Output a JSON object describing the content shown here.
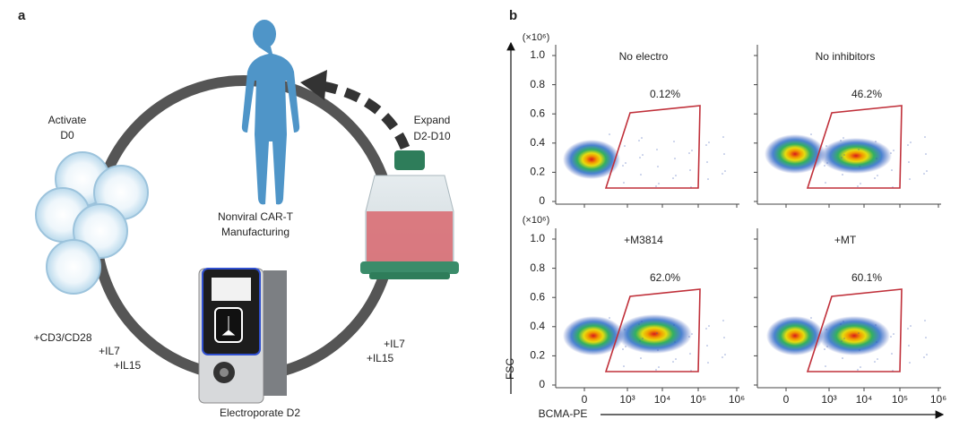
{
  "panel_a": {
    "label": "a",
    "activate": [
      "Activate",
      "D0"
    ],
    "expand": [
      "Expand",
      "D2-D10"
    ],
    "center": [
      "Nonviral CAR-T",
      "Manufacturing"
    ],
    "left_supplements": [
      "+CD3/CD28",
      "+IL7",
      "+IL15"
    ],
    "right_supplements": [
      "+IL7",
      "+IL15"
    ],
    "electroporate": "Electroporate D2"
  },
  "panel_b": {
    "label": "b",
    "y_multiplier": "(×10⁶)",
    "y_axis_label": "FSC",
    "x_axis_label": "BCMA-PE",
    "yticks": [
      "0",
      "0.2",
      "0.4",
      "0.6",
      "0.8",
      "1.0"
    ],
    "xticks": [
      "0",
      "10³",
      "10⁴",
      "10⁵",
      "10⁶"
    ],
    "plots": [
      {
        "title": "No electro",
        "gate": "0.12%"
      },
      {
        "title": "No inhibitors",
        "gate": "46.2%"
      },
      {
        "title": "+M3814",
        "gate": "62.0%"
      },
      {
        "title": "+MT",
        "gate": "60.1%"
      }
    ]
  }
}
